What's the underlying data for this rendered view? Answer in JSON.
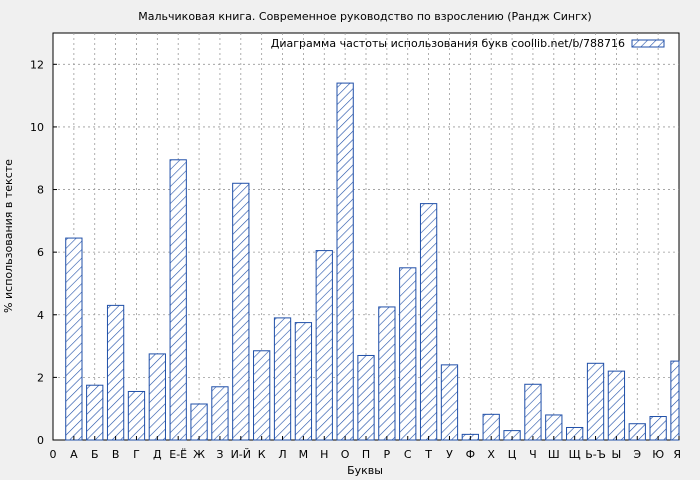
{
  "chart_data": {
    "type": "bar",
    "title": "Мальчиковая книга. Современное руководство по взрослению (Рандж Сингх)",
    "xlabel": "Буквы",
    "ylabel": "% использования в тексте",
    "legend": "Диаграмма частоты использования букв coollib.net/b/788716",
    "legend_position": "top-right",
    "grid": true,
    "ylim": [
      0,
      13
    ],
    "yticks": [
      0,
      2,
      4,
      6,
      8,
      10,
      12
    ],
    "tick_labels": [
      "0",
      "А",
      "Б",
      "В",
      "Г",
      "Д",
      "Е-Ё",
      "Ж",
      "З",
      "И-Й",
      "К",
      "Л",
      "М",
      "Н",
      "О",
      "П",
      "Р",
      "С",
      "Т",
      "У",
      "Ф",
      "Х",
      "Ц",
      "Ч",
      "Ш",
      "Щ",
      "Ь-Ъ",
      "Ы",
      "Э",
      "Ю",
      "Я"
    ],
    "categories": [
      "А",
      "Б",
      "В",
      "Г",
      "Д",
      "Е-Ё",
      "Ж",
      "З",
      "И-Й",
      "К",
      "Л",
      "М",
      "Н",
      "О",
      "П",
      "Р",
      "С",
      "Т",
      "У",
      "Ф",
      "Х",
      "Ц",
      "Ч",
      "Ш",
      "Щ",
      "Ь-Ъ",
      "Ы",
      "Э",
      "Ю",
      "Я"
    ],
    "values": [
      6.45,
      1.75,
      4.3,
      1.55,
      2.75,
      8.95,
      1.15,
      1.7,
      8.2,
      2.85,
      3.9,
      3.75,
      6.05,
      11.4,
      2.7,
      4.25,
      5.5,
      7.55,
      2.4,
      0.18,
      0.82,
      0.3,
      1.78,
      0.8,
      0.4,
      2.45,
      2.2,
      0.52,
      0.75,
      2.52
    ],
    "bar_color": "#1f4fa8",
    "background": "#ffffff",
    "page_background": "#f0f0f0"
  }
}
